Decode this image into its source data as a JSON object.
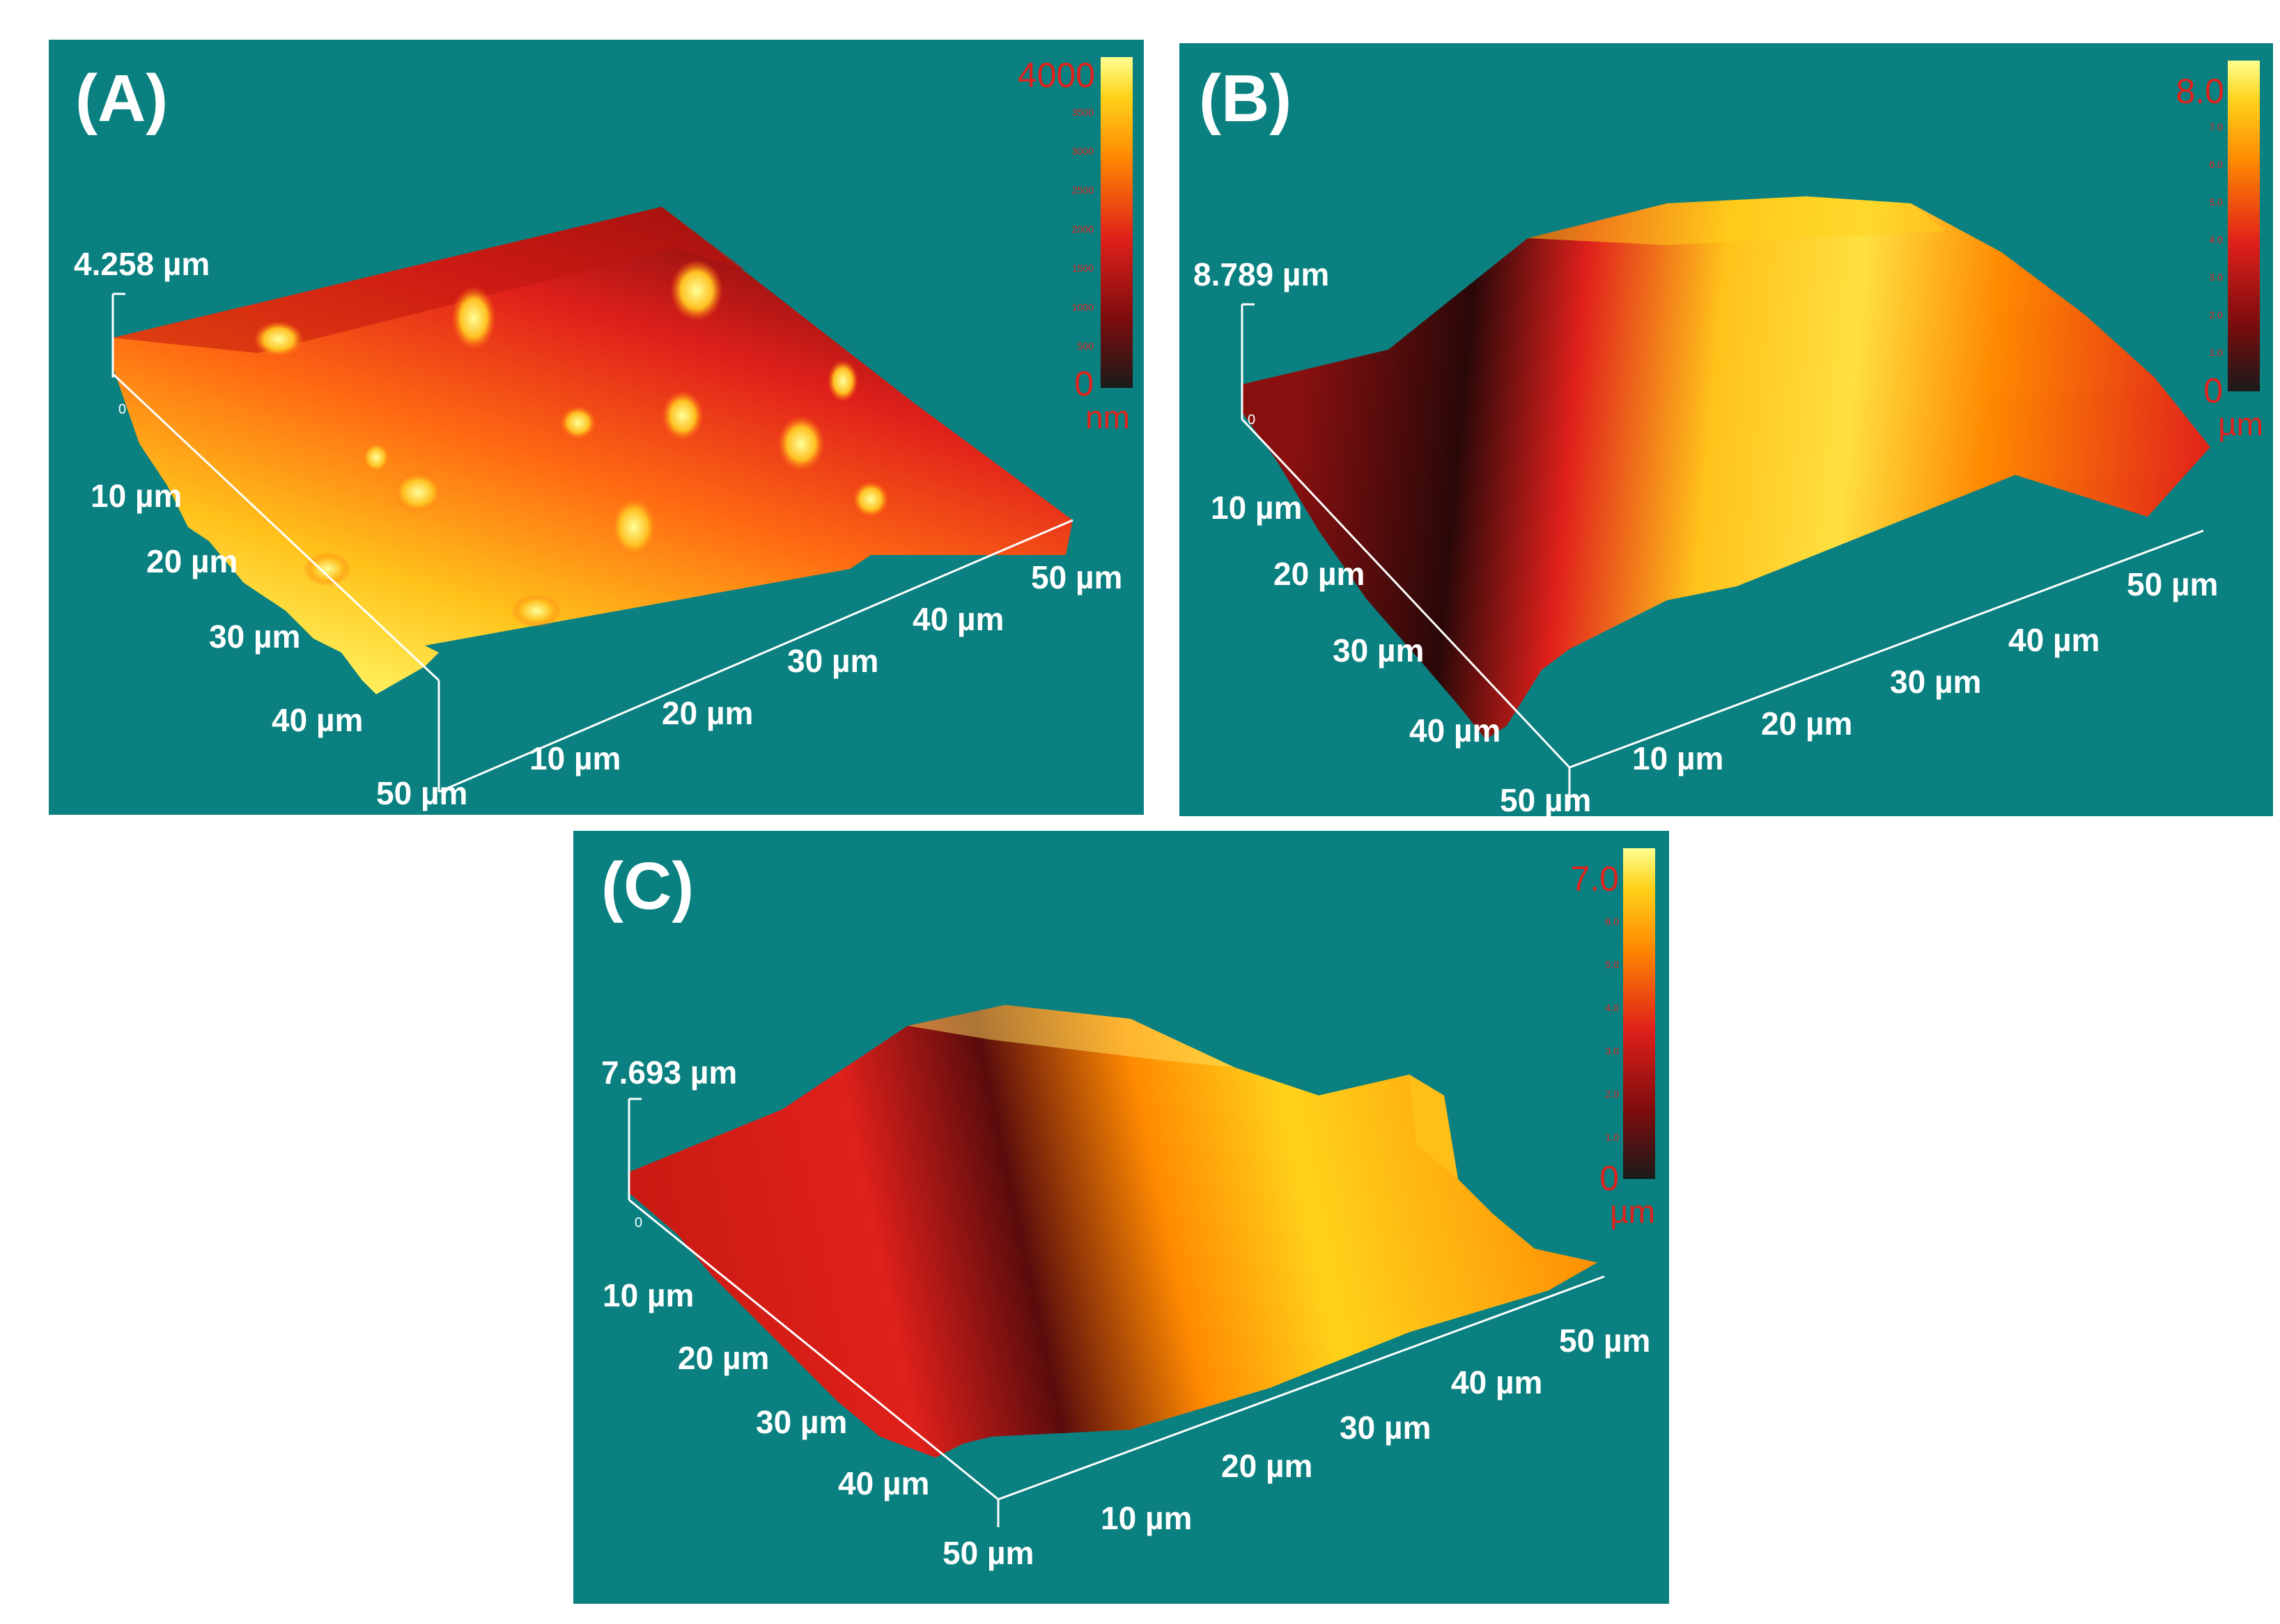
{
  "background_color": "#ffffff",
  "panel_background": "#0a8080",
  "colormap": [
    "#1a1a1a",
    "#7a0c0c",
    "#e0201b",
    "#ff8a00",
    "#ffd21a",
    "#ffff90"
  ],
  "panels": [
    {
      "label": "(A)",
      "zmax_label": "4.258 µm",
      "zero_tick": "0",
      "y_ticks": [
        "10 µm",
        "20 µm",
        "30 µm",
        "40 µm",
        "50 µm"
      ],
      "x_ticks": [
        "10 µm",
        "20 µm",
        "30 µm",
        "40 µm",
        "50 µm"
      ],
      "colorbar": {
        "max": "4000",
        "min": "0",
        "unit": "nm",
        "minor_ticks": [
          "3500",
          "3000",
          "2500",
          "2000",
          "1500",
          "1000",
          "500"
        ]
      }
    },
    {
      "label": "(B)",
      "zmax_label": "8.789 µm",
      "zero_tick": "0",
      "y_ticks": [
        "10 µm",
        "20 µm",
        "30 µm",
        "40 µm",
        "50 µm"
      ],
      "x_ticks": [
        "10 µm",
        "20 µm",
        "30 µm",
        "40 µm",
        "50 µm"
      ],
      "colorbar": {
        "max": "8.0",
        "min": "0",
        "unit": "µm",
        "minor_ticks": [
          "7.0",
          "6.0",
          "5.0",
          "4.0",
          "3.0",
          "2.0",
          "1.0"
        ]
      }
    },
    {
      "label": "(C)",
      "zmax_label": "7.693 µm",
      "zero_tick": "0",
      "y_ticks": [
        "10 µm",
        "20 µm",
        "30 µm",
        "40 µm",
        "50 µm"
      ],
      "x_ticks": [
        "10 µm",
        "20 µm",
        "30 µm",
        "40 µm",
        "50 µm"
      ],
      "colorbar": {
        "max": "7.0",
        "min": "0",
        "unit": "µm",
        "minor_ticks": [
          "6.0",
          "5.0",
          "4.0",
          "3.0",
          "2.0",
          "1.0"
        ]
      }
    }
  ]
}
